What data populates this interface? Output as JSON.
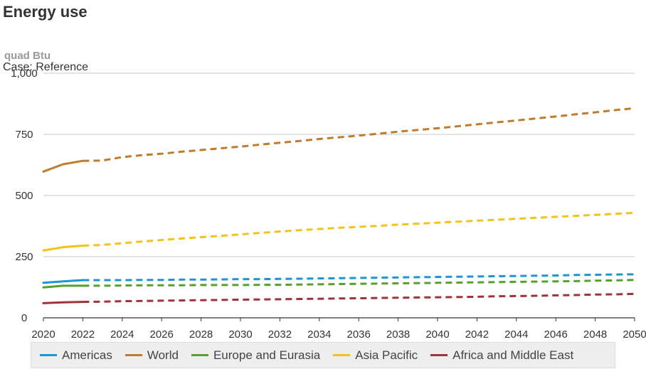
{
  "header": {
    "title": "Energy use",
    "units": "quad Btu",
    "case_label": "Case: Reference"
  },
  "chart_data": {
    "type": "line",
    "title": "Energy use",
    "ylabel": "quad Btu",
    "xlabel": "",
    "xlim": [
      2020,
      2050
    ],
    "ylim": [
      0,
      1000
    ],
    "x_ticks": [
      2020,
      2022,
      2024,
      2026,
      2028,
      2030,
      2032,
      2034,
      2036,
      2038,
      2040,
      2042,
      2044,
      2046,
      2048,
      2050
    ],
    "y_ticks": [
      0,
      250,
      500,
      750,
      1000
    ],
    "y_tick_labels": [
      "0",
      "250",
      "500",
      "750",
      "1,000"
    ],
    "grid": true,
    "history_end": 2022,
    "legend_position": "bottom",
    "x": [
      2020,
      2021,
      2022,
      2023,
      2024,
      2025,
      2026,
      2027,
      2028,
      2029,
      2030,
      2031,
      2032,
      2033,
      2034,
      2035,
      2036,
      2037,
      2038,
      2039,
      2040,
      2041,
      2042,
      2043,
      2044,
      2045,
      2046,
      2047,
      2048,
      2049,
      2050
    ],
    "series": [
      {
        "name": "Americas",
        "color": "#1a96d0",
        "values": [
          143,
          149,
          154,
          154,
          154,
          155,
          155,
          156,
          156,
          157,
          158,
          158,
          159,
          160,
          161,
          162,
          163,
          164,
          165,
          166,
          167,
          168,
          169,
          170,
          171,
          172,
          173,
          175,
          176,
          177,
          178
        ]
      },
      {
        "name": "World",
        "color": "#c07c2e",
        "values": [
          598,
          628,
          642,
          643,
          657,
          665,
          671,
          679,
          686,
          693,
          700,
          708,
          716,
          723,
          731,
          738,
          745,
          753,
          761,
          768,
          775,
          783,
          791,
          799,
          807,
          815,
          823,
          832,
          840,
          849,
          857
        ]
      },
      {
        "name": "Europe and Eurasia",
        "color": "#5a9e2e",
        "values": [
          124,
          131,
          131,
          131,
          132,
          133,
          133,
          133,
          134,
          134,
          134,
          135,
          135,
          136,
          137,
          138,
          139,
          140,
          141,
          142,
          143,
          144,
          145,
          146,
          147,
          148,
          149,
          150,
          152,
          153,
          155
        ]
      },
      {
        "name": "Asia Pacific",
        "color": "#f2c318",
        "values": [
          275,
          289,
          295,
          298,
          305,
          312,
          318,
          324,
          330,
          335,
          341,
          347,
          353,
          358,
          363,
          368,
          372,
          376,
          381,
          385,
          389,
          393,
          397,
          401,
          405,
          409,
          413,
          417,
          421,
          425,
          429
        ]
      },
      {
        "name": "Africa and Middle East",
        "color": "#a0323c",
        "values": [
          60,
          63,
          65,
          66,
          68,
          69,
          70,
          71,
          72,
          73,
          74,
          75,
          76,
          77,
          78,
          79,
          80,
          81,
          82,
          83,
          84,
          85,
          86,
          88,
          89,
          90,
          92,
          93,
          95,
          96,
          98
        ]
      }
    ]
  }
}
